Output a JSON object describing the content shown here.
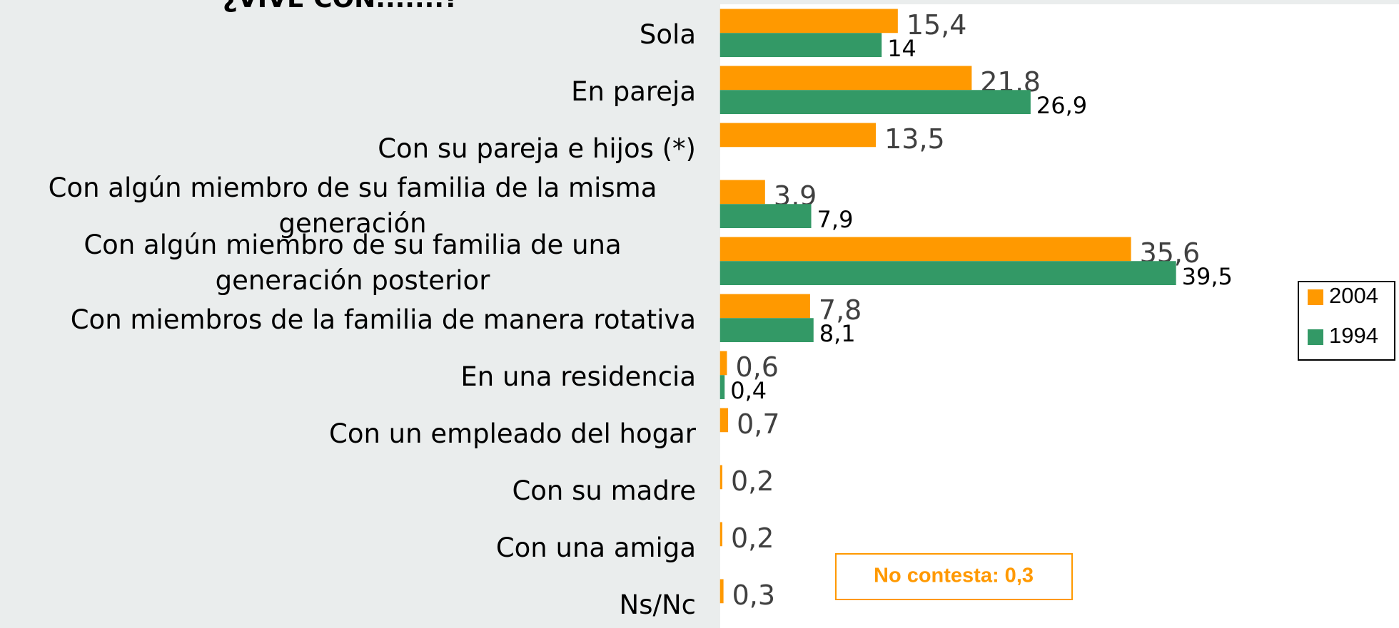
{
  "chart_data": {
    "type": "bar",
    "orientation": "horizontal",
    "title": "¿VIVE CON.......?",
    "categories": [
      "Sola",
      "En pareja",
      "Con su pareja e hijos (*)",
      "Con algún miembro de su familia de la misma generación",
      "Con algún miembro de su familia de una generación posterior",
      "Con miembros de la familia de manera rotativa",
      "En una residencia",
      "Con un empleado del hogar",
      "Con su madre",
      "Con una amiga",
      "Ns/Nc"
    ],
    "series": [
      {
        "name": "2004",
        "color": "#ff9900",
        "values": [
          15.4,
          21.8,
          13.5,
          3.9,
          35.6,
          7.8,
          0.6,
          0.7,
          0.2,
          0.2,
          0.3
        ],
        "value_labels": [
          "15,4",
          "21,8",
          "13,5",
          "3,9",
          "35,6",
          "7,8",
          "0,6",
          "0,7",
          "0,2",
          "0,2",
          "0,3"
        ]
      },
      {
        "name": "1994",
        "color": "#339966",
        "values": [
          14,
          26.9,
          null,
          7.9,
          39.5,
          8.1,
          0.4,
          null,
          null,
          null,
          null
        ],
        "value_labels": [
          "14",
          "26,9",
          null,
          "7,9",
          "39,5",
          "8,1",
          "0,4",
          null,
          null,
          null,
          null
        ]
      }
    ],
    "legend": "right",
    "annotation": "No contesta: 0,3"
  }
}
